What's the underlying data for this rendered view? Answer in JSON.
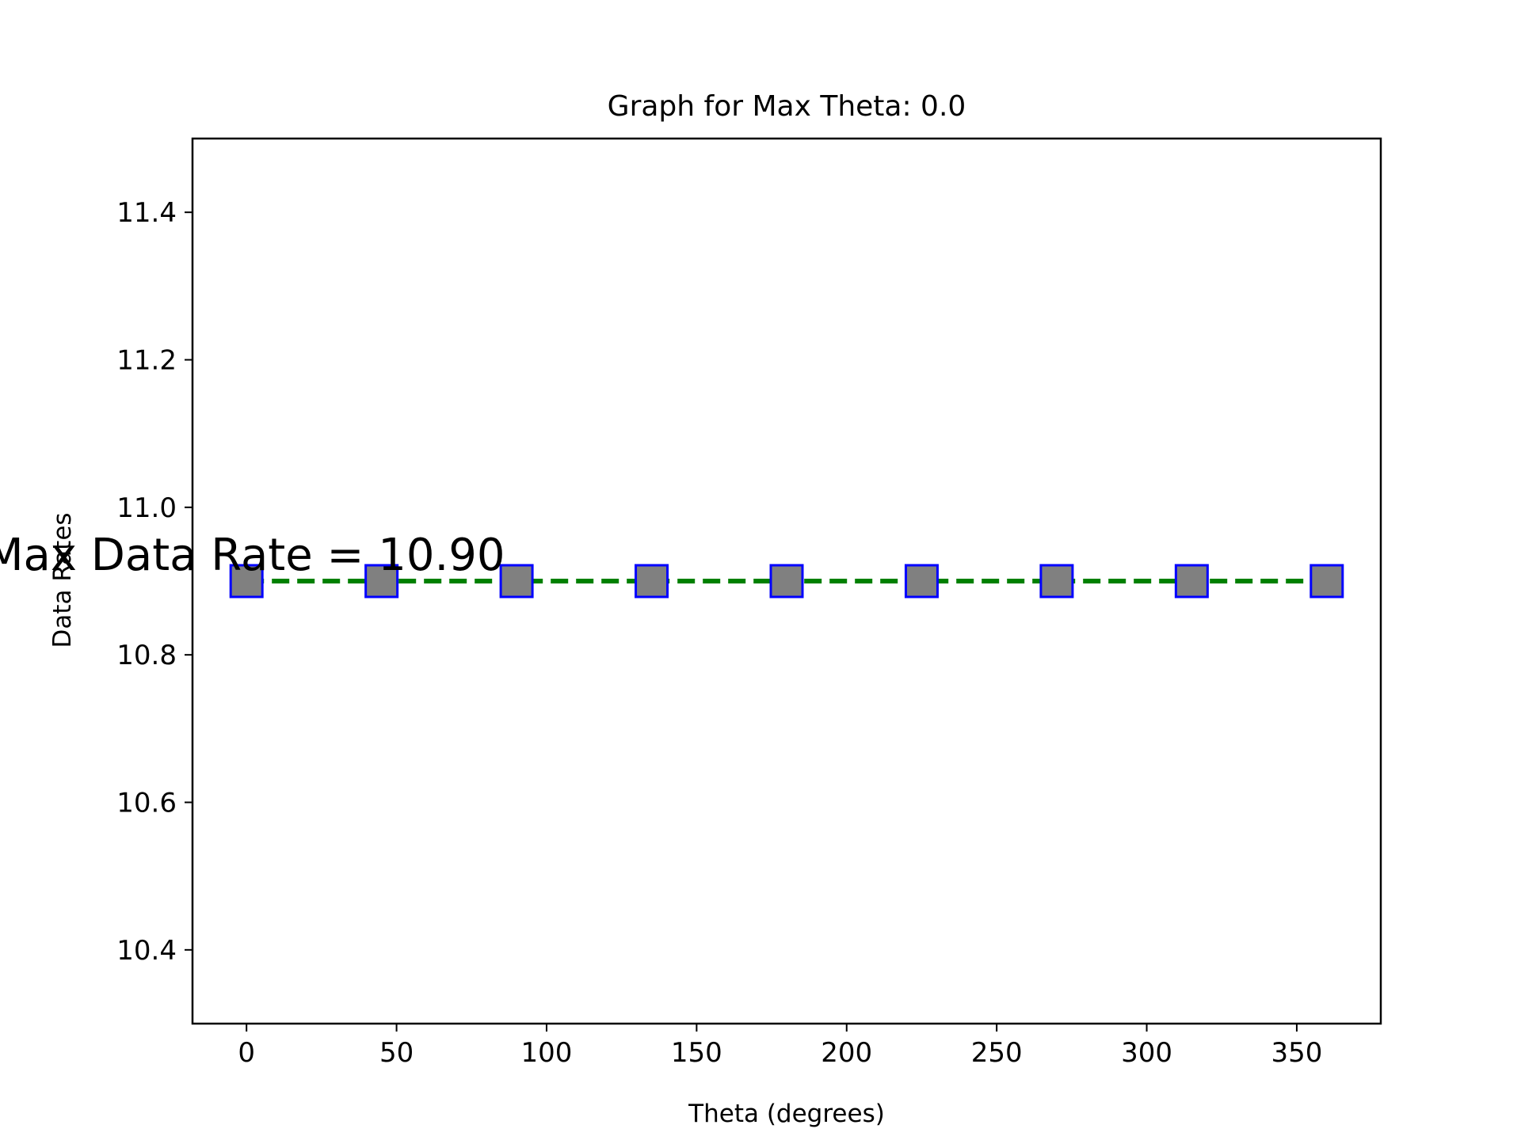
{
  "chart_data": {
    "type": "line",
    "title": "Graph for Max Theta: 0.0",
    "xlabel": "Theta (degrees)",
    "ylabel": "Data Rates",
    "xlim": [
      -18,
      378
    ],
    "ylim": [
      10.3,
      11.5
    ],
    "xticks": [
      0,
      50,
      100,
      150,
      200,
      250,
      300,
      350
    ],
    "yticks": [
      10.4,
      10.6,
      10.8,
      11.0,
      11.2,
      11.4
    ],
    "x": [
      0,
      45,
      90,
      135,
      180,
      225,
      270,
      315,
      360
    ],
    "series": [
      {
        "values": [
          10.9,
          10.9,
          10.9,
          10.9,
          10.9,
          10.9,
          10.9,
          10.9,
          10.9
        ]
      }
    ],
    "line_color": "#008000",
    "line_style": "dashed",
    "marker": "square",
    "marker_face": "#808080",
    "marker_edge": "#0000ff",
    "grid": false,
    "annotation": {
      "text": "Max Data Rate = 10.90",
      "x": 0,
      "y": 10.9
    }
  }
}
